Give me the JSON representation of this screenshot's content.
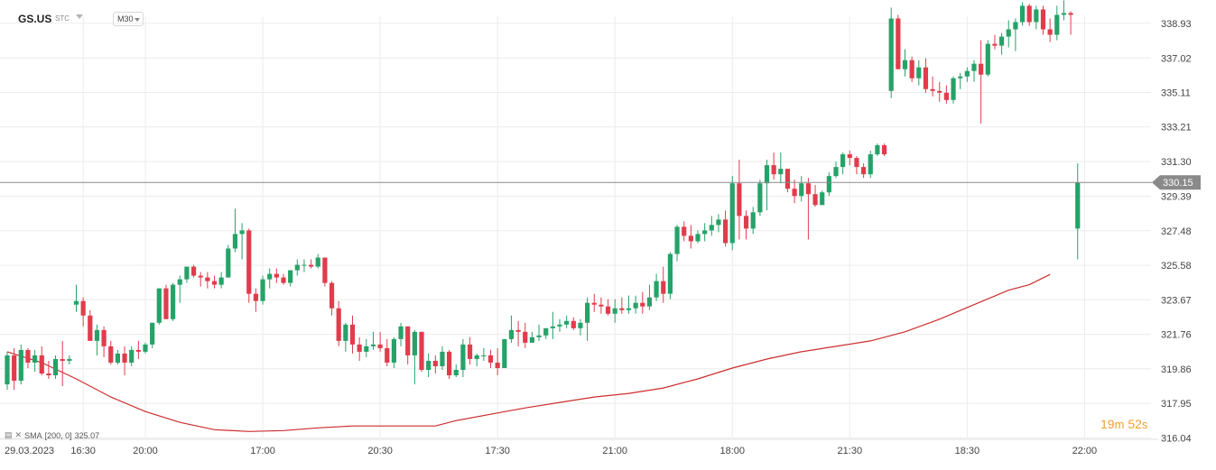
{
  "header": {
    "symbol": "GS.US",
    "mode": "STC",
    "timeframe": "M30"
  },
  "indicator_legend": {
    "label": "SMA",
    "params": "[200,  0]",
    "value": "325.07"
  },
  "timer": {
    "minutes": "19",
    "m": "m",
    "seconds": "52",
    "s": "s"
  },
  "colors": {
    "up": "#26a269",
    "down": "#e03c4c",
    "sma": "#cc2d2d",
    "grid": "#ececec",
    "price_line": "#8a8a8a",
    "price_tag": "#8a8a8a"
  },
  "chart_data": {
    "type": "candlestick",
    "symbol": "GS.US",
    "timeframe": "M30",
    "current_price": "330.15",
    "y_ticks": [
      "338.93",
      "337.02",
      "335.11",
      "333.21",
      "331.30",
      "329.39",
      "327.48",
      "325.58",
      "323.67",
      "321.76",
      "319.86",
      "317.95",
      "316.04"
    ],
    "ylim": [
      316.04,
      340.0
    ],
    "x_ticks": [
      {
        "i": 0,
        "label": "29.03.2023"
      },
      {
        "i": 11,
        "label": "16:30"
      },
      {
        "i": 20,
        "label": "20:00"
      },
      {
        "i": 37,
        "label": "17:00"
      },
      {
        "i": 54,
        "label": "20:30"
      },
      {
        "i": 71,
        "label": "17:30"
      },
      {
        "i": 88,
        "label": "21:00"
      },
      {
        "i": 105,
        "label": "18:00"
      },
      {
        "i": 122,
        "label": "21:30"
      },
      {
        "i": 139,
        "label": "18:30"
      },
      {
        "i": 156,
        "label": "22:00"
      }
    ],
    "candles": [
      [
        319.0,
        320.8,
        318.7,
        320.6
      ],
      [
        320.6,
        321.0,
        318.7,
        319.2
      ],
      [
        319.2,
        321.2,
        319.0,
        320.9
      ],
      [
        320.9,
        321.0,
        319.9,
        320.2
      ],
      [
        320.2,
        320.9,
        319.7,
        320.6
      ],
      [
        320.6,
        321.1,
        319.5,
        319.6
      ],
      [
        319.6,
        320.3,
        319.3,
        319.5
      ],
      [
        319.5,
        320.6,
        319.3,
        320.4
      ],
      [
        320.4,
        321.4,
        318.9,
        320.3
      ],
      [
        320.3,
        320.6,
        320.1,
        320.4
      ],
      [
        323.4,
        324.5,
        323.0,
        323.6
      ],
      [
        323.6,
        323.8,
        322.2,
        322.8
      ],
      [
        322.8,
        323.1,
        321.4,
        321.4
      ],
      [
        321.4,
        322.3,
        320.6,
        322.0
      ],
      [
        322.0,
        322.2,
        320.5,
        321.1
      ],
      [
        321.1,
        321.4,
        320.1,
        320.2
      ],
      [
        320.2,
        320.9,
        320.1,
        320.7
      ],
      [
        320.7,
        321.1,
        319.5,
        320.2
      ],
      [
        320.2,
        321.1,
        320.0,
        320.9
      ],
      [
        320.9,
        321.4,
        320.4,
        320.8
      ],
      [
        320.8,
        321.3,
        320.7,
        321.2
      ],
      [
        321.2,
        322.4,
        321.0,
        322.4
      ],
      [
        322.4,
        324.3,
        322.3,
        324.3
      ],
      [
        324.3,
        324.5,
        322.6,
        322.6
      ],
      [
        322.6,
        324.6,
        322.5,
        324.5
      ],
      [
        324.5,
        325.0,
        323.5,
        324.8
      ],
      [
        324.8,
        325.5,
        324.6,
        325.5
      ],
      [
        325.5,
        325.6,
        324.9,
        325.0
      ],
      [
        325.0,
        325.2,
        324.4,
        324.9
      ],
      [
        324.9,
        325.2,
        324.3,
        324.7
      ],
      [
        324.7,
        325.0,
        324.3,
        324.5
      ],
      [
        324.5,
        325.2,
        324.3,
        324.9
      ],
      [
        324.9,
        326.7,
        324.9,
        326.5
      ],
      [
        326.5,
        328.7,
        326.3,
        327.3
      ],
      [
        327.3,
        327.9,
        325.9,
        327.5
      ],
      [
        327.5,
        327.6,
        323.5,
        324.0
      ],
      [
        324.0,
        324.3,
        323.0,
        323.6
      ],
      [
        323.6,
        325.0,
        323.4,
        324.8
      ],
      [
        324.8,
        325.4,
        324.3,
        325.1
      ],
      [
        325.1,
        325.4,
        324.6,
        324.9
      ],
      [
        324.9,
        325.1,
        324.5,
        324.6
      ],
      [
        324.6,
        325.3,
        324.4,
        325.3
      ],
      [
        325.3,
        325.9,
        325.0,
        325.6
      ],
      [
        325.6,
        325.9,
        325.2,
        325.6
      ],
      [
        325.6,
        325.9,
        325.4,
        325.5
      ],
      [
        325.5,
        326.2,
        325.4,
        326.0
      ],
      [
        326.0,
        326.0,
        324.4,
        324.6
      ],
      [
        324.6,
        324.7,
        322.8,
        323.2
      ],
      [
        323.2,
        323.6,
        321.1,
        321.4
      ],
      [
        321.4,
        322.4,
        320.8,
        322.3
      ],
      [
        322.3,
        322.8,
        320.7,
        321.2
      ],
      [
        321.2,
        321.6,
        320.3,
        320.8
      ],
      [
        320.8,
        321.5,
        320.5,
        321.1
      ],
      [
        321.1,
        321.9,
        320.9,
        321.2
      ],
      [
        321.2,
        321.9,
        320.8,
        321.0
      ],
      [
        321.0,
        321.5,
        320.0,
        320.2
      ],
      [
        320.2,
        321.6,
        319.9,
        321.5
      ],
      [
        321.5,
        322.4,
        321.1,
        322.2
      ],
      [
        322.2,
        322.2,
        320.1,
        320.6
      ],
      [
        320.6,
        322.0,
        319.0,
        321.9
      ],
      [
        321.9,
        321.9,
        319.7,
        319.8
      ],
      [
        319.8,
        320.7,
        319.4,
        320.3
      ],
      [
        320.3,
        320.6,
        319.6,
        320.0
      ],
      [
        320.0,
        321.1,
        319.8,
        320.8
      ],
      [
        320.8,
        320.9,
        319.3,
        319.5
      ],
      [
        319.5,
        320.1,
        319.4,
        319.8
      ],
      [
        319.8,
        321.5,
        319.4,
        321.2
      ],
      [
        321.2,
        321.6,
        320.1,
        320.4
      ],
      [
        320.4,
        320.7,
        320.0,
        320.6
      ],
      [
        320.6,
        321.0,
        320.3,
        320.6
      ],
      [
        320.6,
        320.9,
        319.9,
        320.2
      ],
      [
        320.2,
        321.0,
        319.5,
        319.9
      ],
      [
        319.9,
        321.5,
        319.9,
        321.5
      ],
      [
        321.5,
        322.8,
        321.3,
        322.0
      ],
      [
        322.0,
        322.5,
        321.1,
        321.9
      ],
      [
        321.9,
        322.4,
        321.0,
        321.3
      ],
      [
        321.3,
        321.9,
        321.3,
        321.6
      ],
      [
        321.6,
        322.3,
        321.4,
        321.7
      ],
      [
        321.7,
        322.1,
        321.5,
        322.1
      ],
      [
        322.1,
        323.0,
        321.5,
        322.2
      ],
      [
        322.2,
        322.6,
        321.9,
        322.3
      ],
      [
        322.3,
        322.8,
        322.1,
        322.5
      ],
      [
        322.5,
        322.7,
        322.0,
        322.1
      ],
      [
        322.1,
        322.6,
        321.7,
        322.4
      ],
      [
        322.4,
        323.8,
        321.4,
        323.5
      ],
      [
        323.5,
        324.0,
        323.0,
        323.4
      ],
      [
        323.4,
        323.8,
        322.9,
        323.3
      ],
      [
        323.3,
        323.7,
        322.8,
        322.9
      ],
      [
        322.9,
        323.7,
        322.4,
        323.2
      ],
      [
        323.2,
        323.8,
        322.9,
        323.1
      ],
      [
        323.1,
        323.9,
        322.9,
        323.2
      ],
      [
        323.2,
        323.9,
        322.9,
        323.5
      ],
      [
        323.5,
        324.1,
        322.9,
        323.3
      ],
      [
        323.3,
        324.5,
        323.1,
        323.8
      ],
      [
        323.8,
        325.1,
        323.6,
        324.7
      ],
      [
        324.7,
        325.5,
        323.5,
        324.0
      ],
      [
        324.0,
        326.3,
        323.7,
        326.2
      ],
      [
        326.2,
        327.8,
        325.8,
        327.7
      ],
      [
        327.7,
        328.0,
        326.9,
        327.2
      ],
      [
        327.2,
        327.8,
        326.5,
        326.9
      ],
      [
        326.9,
        327.5,
        326.8,
        327.3
      ],
      [
        327.3,
        327.9,
        326.9,
        327.5
      ],
      [
        327.5,
        328.3,
        327.2,
        327.8
      ],
      [
        327.8,
        328.4,
        327.4,
        328.1
      ],
      [
        328.1,
        328.6,
        326.6,
        326.8
      ],
      [
        326.8,
        330.5,
        326.4,
        330.1
      ],
      [
        330.1,
        331.4,
        327.0,
        328.3
      ],
      [
        328.3,
        328.6,
        327.0,
        327.6
      ],
      [
        327.6,
        328.8,
        327.3,
        328.5
      ],
      [
        328.5,
        330.3,
        328.3,
        330.1
      ],
      [
        330.1,
        331.4,
        328.6,
        331.1
      ],
      [
        331.1,
        331.8,
        330.3,
        330.6
      ],
      [
        330.6,
        331.8,
        330.1,
        330.9
      ],
      [
        330.9,
        330.9,
        329.6,
        329.8
      ],
      [
        329.8,
        330.3,
        329.0,
        329.4
      ],
      [
        329.4,
        330.5,
        329.1,
        330.1
      ],
      [
        330.1,
        330.4,
        327.0,
        329.5
      ],
      [
        329.5,
        330.0,
        328.8,
        328.9
      ],
      [
        328.9,
        329.7,
        328.9,
        329.6
      ],
      [
        329.6,
        330.7,
        329.4,
        330.5
      ],
      [
        330.5,
        331.3,
        330.4,
        331.0
      ],
      [
        331.0,
        331.8,
        330.6,
        331.7
      ],
      [
        331.7,
        331.9,
        331.1,
        331.5
      ],
      [
        331.5,
        331.6,
        330.6,
        331.0
      ],
      [
        331.0,
        331.2,
        330.4,
        330.6
      ],
      [
        330.6,
        331.9,
        330.4,
        331.7
      ],
      [
        331.7,
        332.3,
        331.6,
        332.2
      ],
      [
        332.2,
        332.3,
        331.6,
        331.7
      ],
      [
        335.2,
        339.8,
        334.8,
        339.2
      ],
      [
        339.2,
        339.4,
        336.4,
        336.4
      ],
      [
        336.4,
        337.5,
        336.0,
        336.9
      ],
      [
        336.9,
        337.1,
        335.7,
        335.9
      ],
      [
        335.9,
        336.9,
        335.5,
        336.5
      ],
      [
        336.5,
        337.0,
        335.1,
        335.3
      ],
      [
        335.3,
        336.0,
        334.9,
        335.2
      ],
      [
        335.2,
        335.7,
        334.6,
        335.1
      ],
      [
        335.1,
        335.5,
        334.5,
        334.7
      ],
      [
        334.7,
        336.0,
        334.5,
        335.9
      ],
      [
        335.9,
        336.2,
        335.3,
        336.0
      ],
      [
        336.0,
        336.5,
        335.7,
        336.3
      ],
      [
        336.3,
        336.9,
        335.7,
        336.7
      ],
      [
        336.7,
        338.0,
        333.4,
        336.1
      ],
      [
        336.1,
        338.0,
        336.0,
        337.8
      ],
      [
        337.8,
        338.3,
        337.5,
        337.7
      ],
      [
        337.7,
        338.4,
        337.2,
        338.2
      ],
      [
        338.2,
        339.1,
        337.6,
        338.6
      ],
      [
        338.6,
        339.2,
        337.4,
        339.0
      ],
      [
        339.0,
        340.1,
        338.8,
        339.9
      ],
      [
        339.9,
        340.0,
        338.8,
        339.0
      ],
      [
        339.0,
        339.9,
        338.6,
        339.7
      ],
      [
        339.7,
        339.9,
        338.3,
        338.6
      ],
      [
        338.6,
        339.2,
        337.9,
        338.3
      ],
      [
        338.3,
        339.9,
        338.0,
        339.4
      ],
      [
        339.4,
        340.2,
        339.1,
        339.5
      ],
      [
        339.5,
        339.6,
        338.3,
        339.4
      ],
      [
        327.6,
        331.2,
        325.9,
        330.15
      ]
    ],
    "sma": {
      "label": "SMA",
      "period": 200,
      "shift": 0,
      "value": 325.07,
      "points": [
        [
          0,
          320.8
        ],
        [
          5,
          320.2
        ],
        [
          10,
          319.3
        ],
        [
          15,
          318.3
        ],
        [
          20,
          317.5
        ],
        [
          25,
          316.9
        ],
        [
          30,
          316.5
        ],
        [
          35,
          316.4
        ],
        [
          40,
          316.45
        ],
        [
          45,
          316.6
        ],
        [
          50,
          316.7
        ],
        [
          53,
          316.7
        ],
        [
          60,
          316.7
        ],
        [
          62,
          316.7
        ],
        [
          65,
          317.0
        ],
        [
          70,
          317.35
        ],
        [
          75,
          317.7
        ],
        [
          80,
          318.0
        ],
        [
          85,
          318.3
        ],
        [
          90,
          318.5
        ],
        [
          95,
          318.8
        ],
        [
          100,
          319.3
        ],
        [
          105,
          319.9
        ],
        [
          110,
          320.4
        ],
        [
          115,
          320.8
        ],
        [
          120,
          321.1
        ],
        [
          125,
          321.4
        ],
        [
          130,
          321.9
        ],
        [
          135,
          322.6
        ],
        [
          140,
          323.4
        ],
        [
          145,
          324.2
        ],
        [
          148,
          324.5
        ],
        [
          151,
          325.07
        ]
      ]
    }
  }
}
